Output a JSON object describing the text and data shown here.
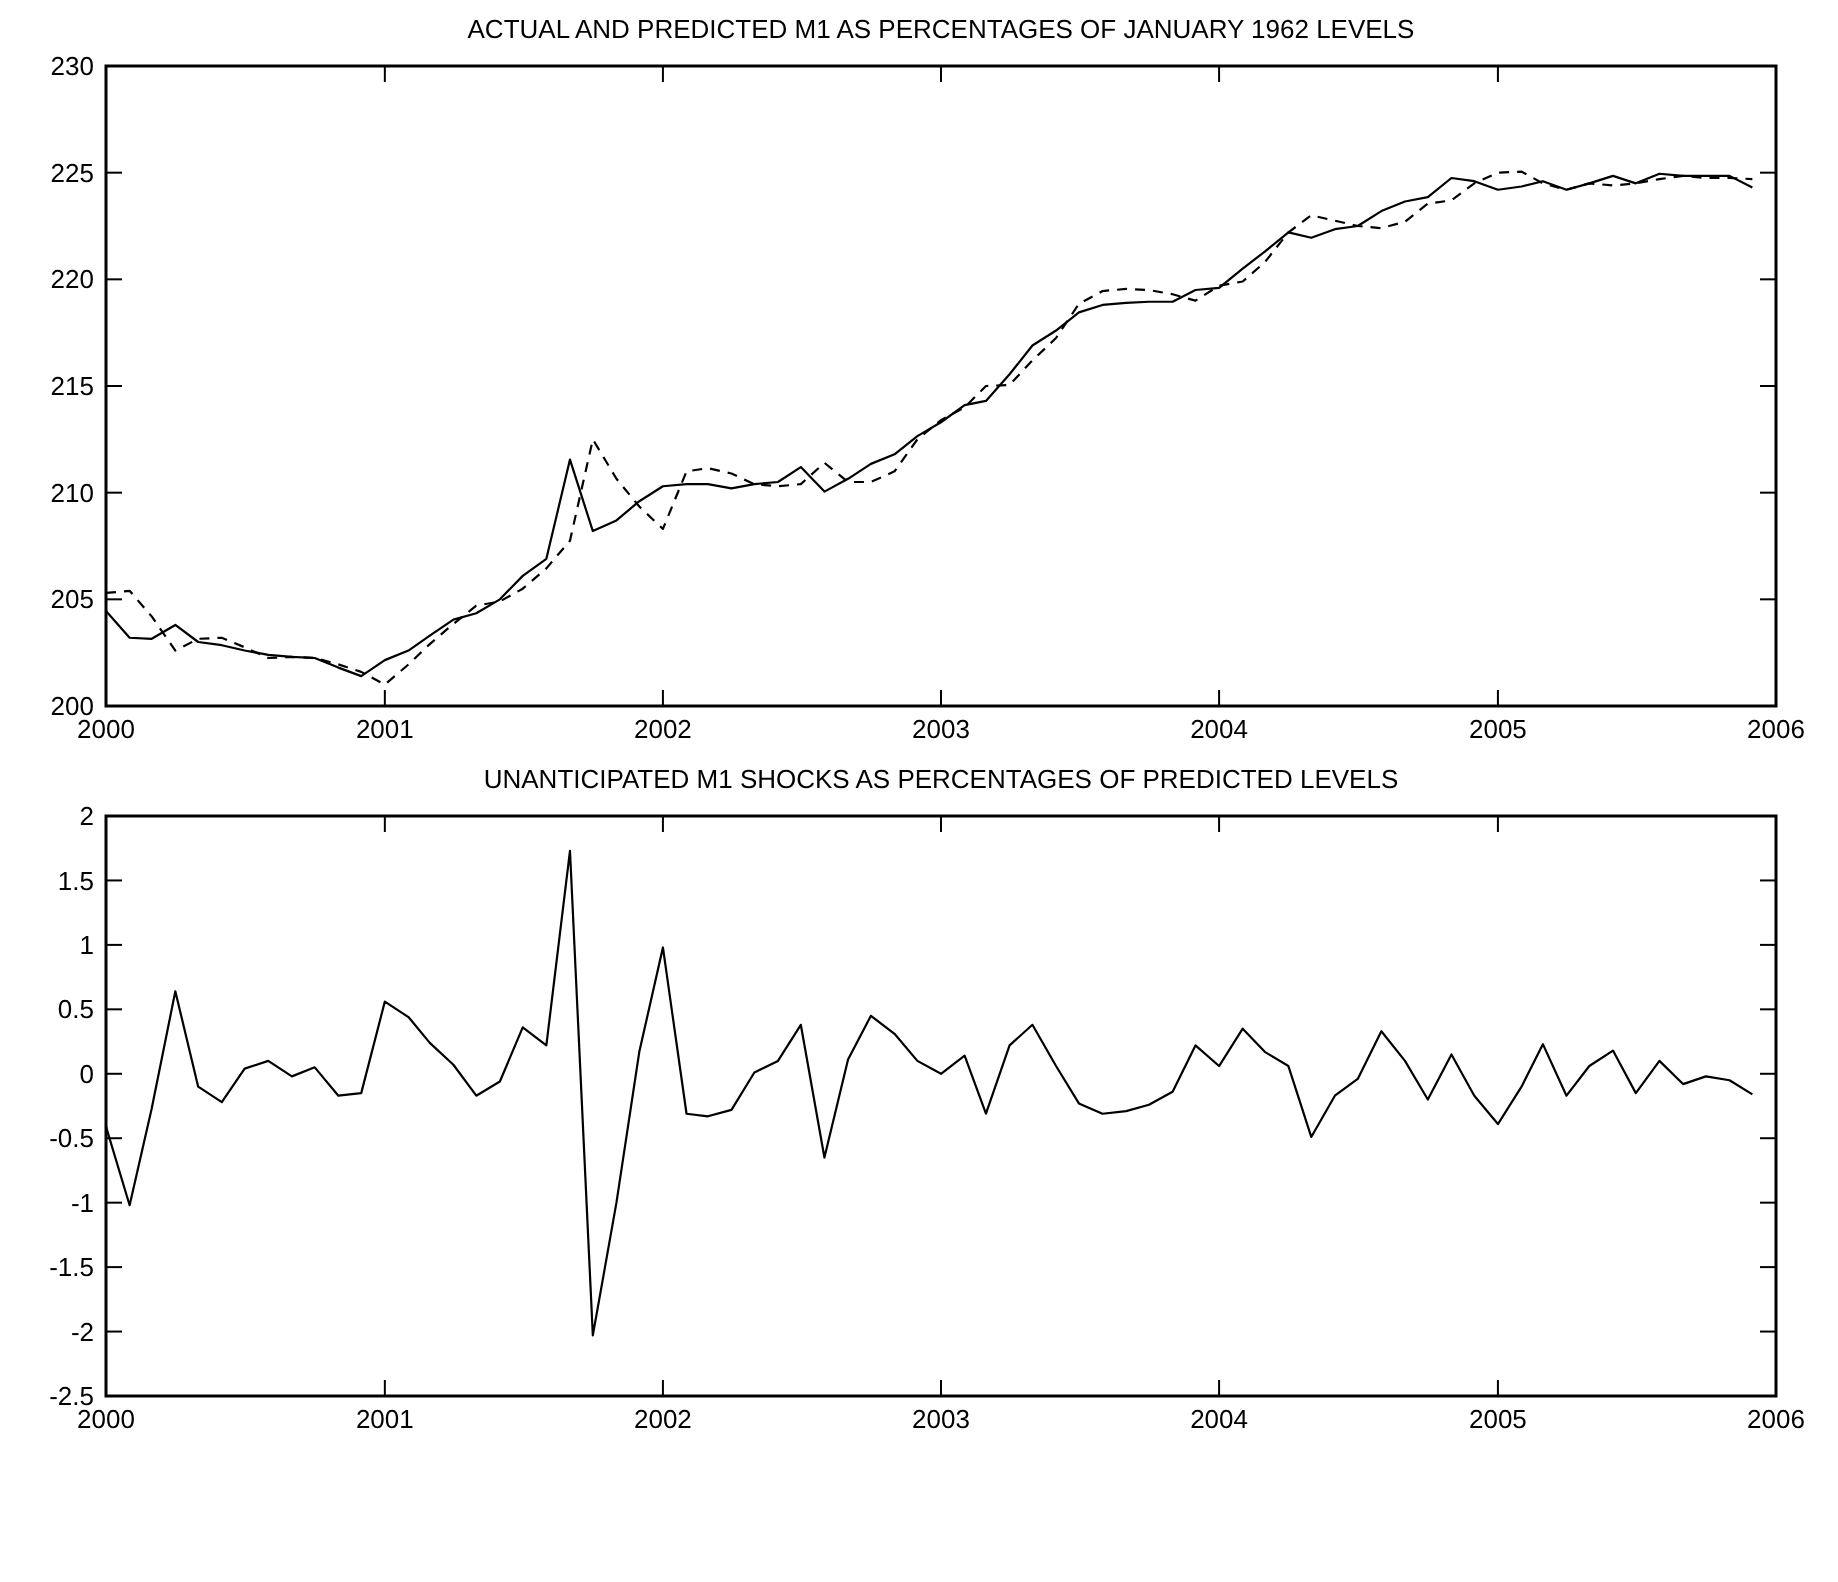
{
  "chart_data": [
    {
      "type": "line",
      "title": "ACTUAL AND PREDICTED M1 AS PERCENTAGES OF JANUARY 1962 LEVELS",
      "x": [
        "2000-01",
        "2000-02",
        "2000-03",
        "2000-04",
        "2000-05",
        "2000-06",
        "2000-07",
        "2000-08",
        "2000-09",
        "2000-10",
        "2000-11",
        "2000-12",
        "2001-01",
        "2001-02",
        "2001-03",
        "2001-04",
        "2001-05",
        "2001-06",
        "2001-07",
        "2001-08",
        "2001-09",
        "2001-10",
        "2001-11",
        "2001-12",
        "2002-01",
        "2002-02",
        "2002-03",
        "2002-04",
        "2002-05",
        "2002-06",
        "2002-07",
        "2002-08",
        "2002-09",
        "2002-10",
        "2002-11",
        "2002-12",
        "2003-01",
        "2003-02",
        "2003-03",
        "2003-04",
        "2003-05",
        "2003-06",
        "2003-07",
        "2003-08",
        "2003-09",
        "2003-10",
        "2003-11",
        "2003-12",
        "2004-01",
        "2004-02",
        "2004-03",
        "2004-04",
        "2004-05",
        "2004-06",
        "2004-07",
        "2004-08",
        "2004-09",
        "2004-10",
        "2004-11",
        "2004-12",
        "2005-01",
        "2005-02",
        "2005-03",
        "2005-04",
        "2005-05",
        "2005-06",
        "2005-07",
        "2005-08",
        "2005-09",
        "2005-10",
        "2005-11",
        "2005-12"
      ],
      "series": [
        {
          "color": "#000000",
          "line_style": "solid",
          "values": [
            204.45,
            203.2,
            203.15,
            203.8,
            203.0,
            202.85,
            202.6,
            202.4,
            202.3,
            202.25,
            201.8,
            201.4,
            202.15,
            202.6,
            203.3,
            204.05,
            204.35,
            205.0,
            206.1,
            206.9,
            211.55,
            208.2,
            208.7,
            209.6,
            210.3,
            210.4,
            210.4,
            210.2,
            210.4,
            210.5,
            211.2,
            210.05,
            210.65,
            211.35,
            211.8,
            212.65,
            213.3,
            214.1,
            214.3,
            215.55,
            216.9,
            217.6,
            218.45,
            218.8,
            218.9,
            218.95,
            218.95,
            219.5,
            219.6,
            220.5,
            221.3,
            222.2,
            221.95,
            222.35,
            222.5,
            223.2,
            223.65,
            223.85,
            224.75,
            224.6,
            224.2,
            224.35,
            224.6,
            224.2,
            224.5,
            224.85,
            224.5,
            224.95,
            224.85,
            224.85,
            224.85,
            224.3
          ]
        },
        {
          "color": "#000000",
          "line_style": "dashed",
          "values": [
            205.3,
            205.4,
            204.2,
            202.6,
            203.15,
            203.2,
            202.75,
            202.25,
            202.3,
            202.25,
            201.95,
            201.6,
            201.0,
            201.95,
            202.9,
            203.85,
            204.7,
            204.9,
            205.5,
            206.45,
            207.75,
            212.5,
            210.65,
            209.35,
            208.3,
            211.0,
            211.15,
            210.9,
            210.4,
            210.3,
            210.4,
            211.4,
            210.5,
            210.5,
            211.0,
            212.5,
            213.4,
            214.0,
            215.0,
            215.05,
            216.2,
            217.25,
            218.85,
            219.45,
            219.55,
            219.5,
            219.3,
            219.0,
            219.7,
            219.9,
            220.8,
            222.2,
            223.0,
            222.75,
            222.5,
            222.4,
            222.7,
            223.55,
            223.7,
            224.5,
            225.0,
            225.05,
            224.5,
            224.2,
            224.5,
            224.4,
            224.5,
            224.7,
            224.85,
            224.75,
            224.75,
            224.7
          ]
        }
      ],
      "xlim": [
        "2000-01",
        "2006-01"
      ],
      "xticks": [
        {
          "value": "2000-01",
          "label": "2000"
        },
        {
          "value": "2001-01",
          "label": "2001"
        },
        {
          "value": "2002-01",
          "label": "2002"
        },
        {
          "value": "2003-01",
          "label": "2003"
        },
        {
          "value": "2004-01",
          "label": "2004"
        },
        {
          "value": "2005-01",
          "label": "2005"
        },
        {
          "value": "2006-01",
          "label": "2006"
        }
      ],
      "ylim": [
        200,
        230
      ],
      "yticks": [
        200,
        205,
        210,
        215,
        220,
        225,
        230
      ]
    },
    {
      "type": "line",
      "title": "UNANTICIPATED M1 SHOCKS AS PERCENTAGES OF PREDICTED LEVELS",
      "x": [
        "2000-01",
        "2000-02",
        "2000-03",
        "2000-04",
        "2000-05",
        "2000-06",
        "2000-07",
        "2000-08",
        "2000-09",
        "2000-10",
        "2000-11",
        "2000-12",
        "2001-01",
        "2001-02",
        "2001-03",
        "2001-04",
        "2001-05",
        "2001-06",
        "2001-07",
        "2001-08",
        "2001-09",
        "2001-10",
        "2001-11",
        "2001-12",
        "2002-01",
        "2002-02",
        "2002-03",
        "2002-04",
        "2002-05",
        "2002-06",
        "2002-07",
        "2002-08",
        "2002-09",
        "2002-10",
        "2002-11",
        "2002-12",
        "2003-01",
        "2003-02",
        "2003-03",
        "2003-04",
        "2003-05",
        "2003-06",
        "2003-07",
        "2003-08",
        "2003-09",
        "2003-10",
        "2003-11",
        "2003-12",
        "2004-01",
        "2004-02",
        "2004-03",
        "2004-04",
        "2004-05",
        "2004-06",
        "2004-07",
        "2004-08",
        "2004-09",
        "2004-10",
        "2004-11",
        "2004-12",
        "2005-01",
        "2005-02",
        "2005-03",
        "2005-04",
        "2005-05",
        "2005-06",
        "2005-07",
        "2005-08",
        "2005-09",
        "2005-10",
        "2005-11",
        "2005-12"
      ],
      "series": [
        {
          "color": "#000000",
          "line_style": "solid",
          "values": [
            -0.41,
            -1.02,
            -0.27,
            0.64,
            -0.1,
            -0.22,
            0.04,
            0.1,
            -0.02,
            0.05,
            -0.17,
            -0.15,
            0.56,
            0.44,
            0.24,
            0.07,
            -0.17,
            -0.06,
            0.36,
            0.22,
            1.73,
            -2.03,
            -1.0,
            0.17,
            0.98,
            -0.31,
            -0.33,
            -0.28,
            0.01,
            0.1,
            0.38,
            -0.65,
            0.11,
            0.45,
            0.31,
            0.1,
            0.0,
            0.14,
            -0.31,
            0.22,
            0.38,
            0.06,
            -0.23,
            -0.31,
            -0.29,
            -0.24,
            -0.14,
            0.22,
            0.06,
            0.35,
            0.17,
            0.06,
            -0.49,
            -0.17,
            -0.04,
            0.33,
            0.1,
            -0.2,
            0.15,
            -0.17,
            -0.39,
            -0.1,
            0.23,
            -0.17,
            0.06,
            0.18,
            -0.15,
            0.1,
            -0.08,
            -0.02,
            -0.05,
            -0.16
          ]
        }
      ],
      "xlim": [
        "2000-01",
        "2006-01"
      ],
      "xticks": [
        {
          "value": "2000-01",
          "label": "2000"
        },
        {
          "value": "2001-01",
          "label": "2001"
        },
        {
          "value": "2002-01",
          "label": "2002"
        },
        {
          "value": "2003-01",
          "label": "2003"
        },
        {
          "value": "2004-01",
          "label": "2004"
        },
        {
          "value": "2005-01",
          "label": "2005"
        },
        {
          "value": "2006-01",
          "label": "2006"
        }
      ],
      "ylim": [
        -2.5,
        2
      ],
      "yticks": [
        -2.5,
        -2,
        -1.5,
        -1,
        -0.5,
        0,
        0.5,
        1,
        1.5,
        2
      ]
    }
  ]
}
